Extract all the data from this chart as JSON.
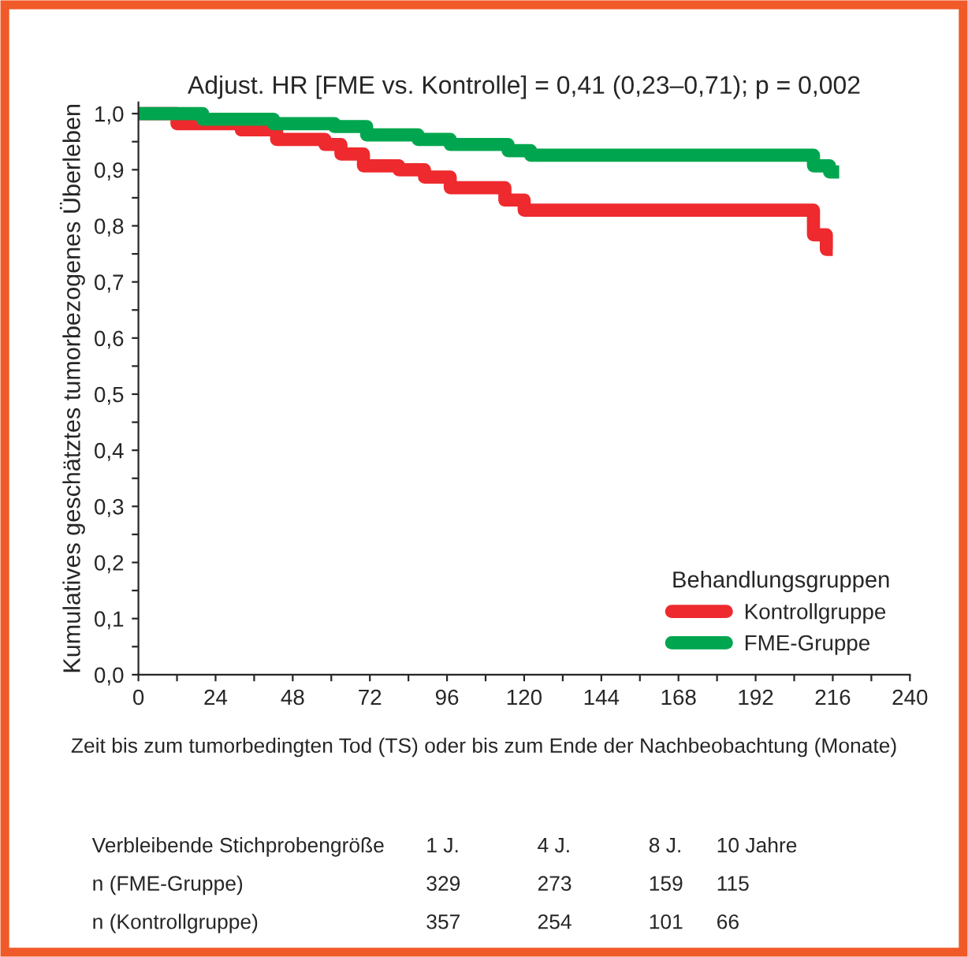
{
  "chart_data": {
    "type": "step",
    "title": "Adjust. HR [FME vs. Kontrolle] = 0,41 (0,23–0,71); p = 0,002",
    "xlabel": "Zeit bis zum tumorbedingten Tod (TS) oder bis zum Ende der Nachbeobachtung (Monate)",
    "ylabel": "Kumulatives geschätztes tumorbezogenes Überleben",
    "legend_title": "Behandlungsgruppen",
    "legend": "bottom right",
    "grid": false,
    "marker": "none",
    "line_style": "solid",
    "xlim": [
      0,
      240
    ],
    "ylim": [
      0,
      1.02
    ],
    "xticks": [
      0,
      {
        "value": 12,
        "label": null
      },
      24,
      {
        "value": 36,
        "label": null
      },
      48,
      {
        "value": 60,
        "label": null
      },
      72,
      {
        "value": 84,
        "label": null
      },
      96,
      {
        "value": 108,
        "label": null
      },
      120,
      {
        "value": 132,
        "label": null
      },
      144,
      {
        "value": 156,
        "label": null
      },
      168,
      {
        "value": 180,
        "label": null
      },
      192,
      {
        "value": 204,
        "label": null
      },
      216,
      {
        "value": 228,
        "label": null
      },
      240
    ],
    "yticks": [
      {
        "value": 0,
        "label": "0,0"
      },
      {
        "value": 0.05,
        "label": null
      },
      {
        "value": 0.1,
        "label": "0,1"
      },
      {
        "value": 0.15,
        "label": null
      },
      {
        "value": 0.2,
        "label": "0,2"
      },
      {
        "value": 0.25,
        "label": null
      },
      {
        "value": 0.3,
        "label": "0,3"
      },
      {
        "value": 0.35,
        "label": null
      },
      {
        "value": 0.4,
        "label": "0,4"
      },
      {
        "value": 0.45,
        "label": null
      },
      {
        "value": 0.5,
        "label": "0,5"
      },
      {
        "value": 0.55,
        "label": null
      },
      {
        "value": 0.6,
        "label": "0,6"
      },
      {
        "value": 0.65,
        "label": null
      },
      {
        "value": 0.7,
        "label": "0,7"
      },
      {
        "value": 0.75,
        "label": null
      },
      {
        "value": 0.8,
        "label": "0,8"
      },
      {
        "value": 0.85,
        "label": null
      },
      {
        "value": 0.9,
        "label": "0,9"
      },
      {
        "value": 0.95,
        "label": null
      },
      {
        "value": 1.0,
        "label": "1,0"
      }
    ],
    "series": [
      {
        "name": "Kontrollgruppe",
        "color": "#ee2a2e",
        "x": [
          0,
          12,
          32,
          43,
          58,
          63,
          70,
          81,
          89,
          97,
          114,
          120,
          210,
          214,
          216
        ],
        "values": [
          1.0,
          0.982,
          0.971,
          0.954,
          0.945,
          0.928,
          0.907,
          0.9,
          0.887,
          0.868,
          0.846,
          0.828,
          0.784,
          0.758,
          0.758
        ]
      },
      {
        "name": "FME-Gruppe",
        "color": "#00a64f",
        "x": [
          0,
          20,
          42,
          61,
          71,
          87,
          97,
          115,
          122,
          210,
          215,
          218
        ],
        "values": [
          1.0,
          0.99,
          0.982,
          0.977,
          0.962,
          0.954,
          0.945,
          0.934,
          0.926,
          0.907,
          0.896,
          0.896
        ]
      }
    ],
    "annotations": [
      "Verbleibende Stichprobengröße",
      "1 J.",
      "4 J.",
      "8 J.",
      "10 Jahre",
      "n (FME-Gruppe)",
      "329",
      "273",
      "159",
      "115",
      "n (Kontrollgruppe)",
      "357",
      "254",
      "101",
      "66"
    ]
  }
}
